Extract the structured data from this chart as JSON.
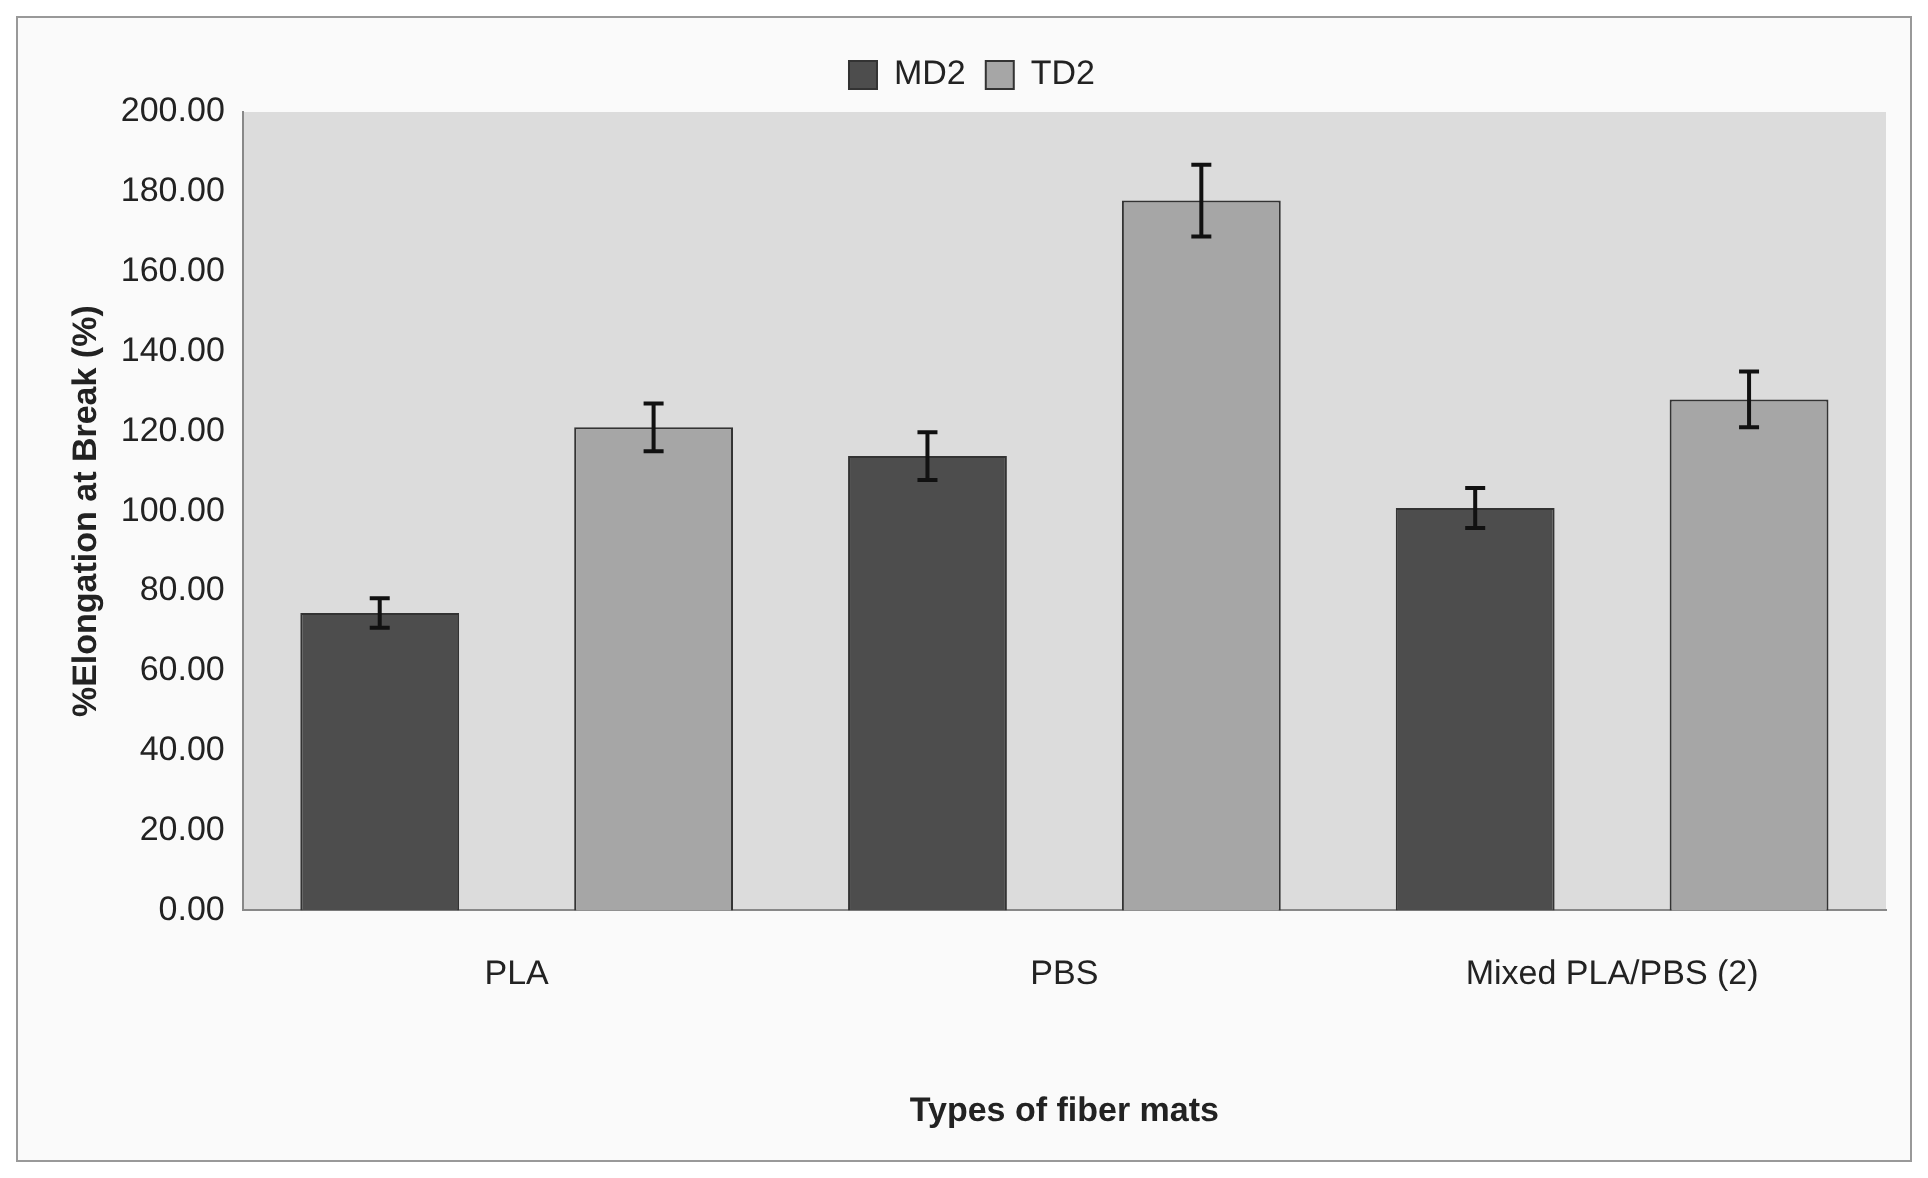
{
  "chart_data": {
    "type": "bar",
    "xlabel": "Types of fiber mats",
    "ylabel": "%Elongation at Break (%)",
    "categories": [
      "PLA",
      "PBS",
      "Mixed PLA/PBS (2)"
    ],
    "series": [
      {
        "name": "MD2",
        "color": "#4d4d4d",
        "values": [
          74.5,
          113.8,
          100.8
        ],
        "errors": [
          3.7,
          6,
          5
        ]
      },
      {
        "name": "TD2",
        "color": "#a6a6a6",
        "values": [
          121,
          177.8,
          128
        ],
        "errors": [
          6,
          9,
          7
        ]
      }
    ],
    "ylim": [
      0,
      200
    ],
    "yticks": [
      {
        "value": 0,
        "label": "0.00"
      },
      {
        "value": 20,
        "label": "20.00"
      },
      {
        "value": 40,
        "label": "40.00"
      },
      {
        "value": 60,
        "label": "60.00"
      },
      {
        "value": 80,
        "label": "80.00"
      },
      {
        "value": 100,
        "label": "100.00"
      },
      {
        "value": 120,
        "label": "120.00"
      },
      {
        "value": 140,
        "label": "140.00"
      },
      {
        "value": 160,
        "label": "160.00"
      },
      {
        "value": 180,
        "label": "180.00"
      },
      {
        "value": 200,
        "label": "200.00"
      }
    ],
    "grid": false,
    "legend": "top"
  }
}
